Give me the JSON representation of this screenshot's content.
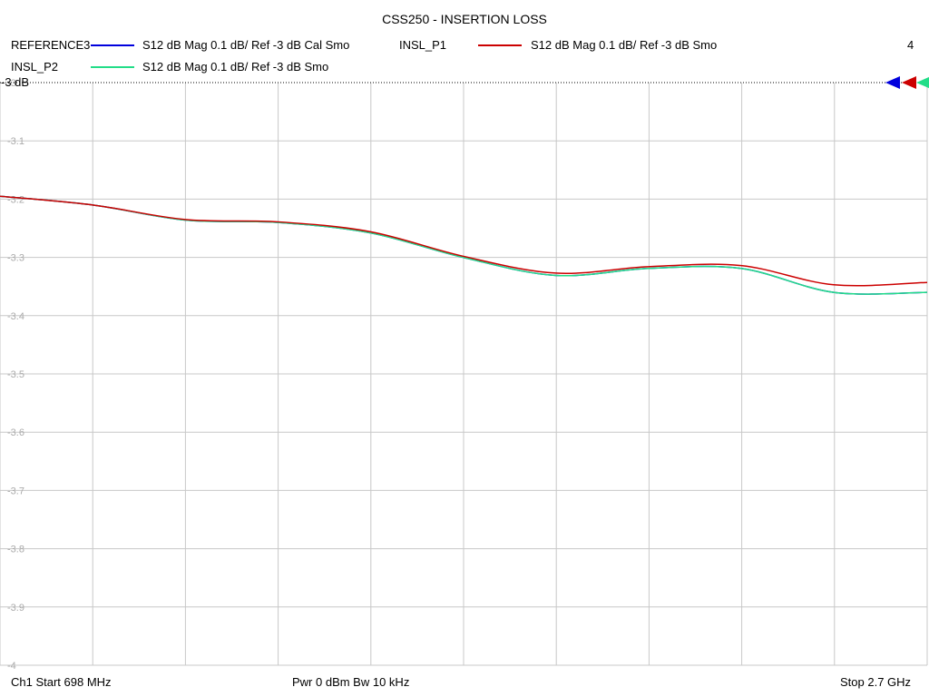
{
  "chart_data": {
    "type": "line",
    "title": "CSS250 - INSERTION LOSS",
    "ylim": [
      -4.0,
      -3.0
    ],
    "ref_label": "-3 dB",
    "y_ticks": [
      "-3",
      "-3.1",
      "-3.2",
      "-3.3",
      "-3.4",
      "-3.5",
      "-3.6",
      "-3.7",
      "-3.8",
      "-3.9",
      "-4"
    ],
    "grid": true,
    "x_start_mhz": 698,
    "x_stop_mhz": 2700,
    "series": [
      {
        "name": "REFERENCE3",
        "desc": "S12  dB Mag  0.1 dB/ Ref -3 dB  Cal Smo",
        "color": "#0000dd",
        "x": [
          698,
          898,
          1098,
          1298,
          1498,
          1698,
          1898,
          2098,
          2298,
          2498,
          2700
        ],
        "y": [
          -3.195,
          -3.21,
          -3.236,
          -3.24,
          -3.258,
          -3.3,
          -3.331,
          -3.319,
          -3.319,
          -3.36,
          -3.36
        ]
      },
      {
        "name": "INSL_P1",
        "desc": "S12  dB Mag  0.1 dB/ Ref -3 dB  Smo",
        "color": "#cc0000",
        "x": [
          698,
          898,
          1098,
          1298,
          1498,
          1698,
          1898,
          2098,
          2298,
          2498,
          2700
        ],
        "y": [
          -3.195,
          -3.21,
          -3.235,
          -3.239,
          -3.256,
          -3.298,
          -3.327,
          -3.316,
          -3.314,
          -3.347,
          -3.343
        ]
      },
      {
        "name": "INSL_P2",
        "desc": "S12  dB Mag  0.1 dB/ Ref -3 dB  Smo",
        "color": "#22dd88",
        "x": [
          698,
          898,
          1098,
          1298,
          1498,
          1698,
          1898,
          2098,
          2298,
          2498,
          2700
        ],
        "y": [
          -3.195,
          -3.21,
          -3.236,
          -3.24,
          -3.258,
          -3.3,
          -3.331,
          -3.319,
          -3.319,
          -3.36,
          -3.36
        ]
      }
    ]
  },
  "trace_count": "4",
  "footer": {
    "start": "Ch1  Start  698 MHz",
    "power": "Pwr  0 dBm  Bw  10 kHz",
    "stop": "Stop  2.7 GHz"
  }
}
